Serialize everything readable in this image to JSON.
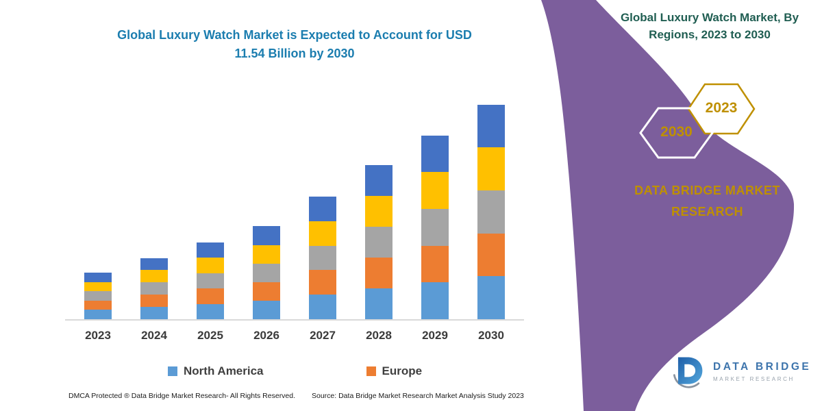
{
  "title_color": "#1B7DAF",
  "chart_data": {
    "type": "bar",
    "stacked": true,
    "title": "Global Luxury Watch Market is Expected to Account for USD 11.54 Billion by 2030",
    "title_line1": "Global Luxury Watch Market is Expected to Account for USD",
    "title_line2": "11.54 Billion by 2030",
    "categories": [
      "2023",
      "2024",
      "2025",
      "2026",
      "2027",
      "2028",
      "2029",
      "2030"
    ],
    "series": [
      {
        "name": "North America",
        "color": "#5B9BD5",
        "values": [
          0.5,
          0.66,
          0.83,
          1.0,
          1.32,
          1.66,
          1.98,
          2.31
        ]
      },
      {
        "name": "Europe",
        "color": "#ED7D31",
        "values": [
          0.5,
          0.66,
          0.83,
          1.0,
          1.32,
          1.66,
          1.98,
          2.31
        ]
      },
      {
        "name": "(unlabeled gray segment)",
        "color": "#A5A5A5",
        "values": [
          0.5,
          0.66,
          0.83,
          1.0,
          1.32,
          1.66,
          1.98,
          2.31
        ]
      },
      {
        "name": "(unlabeled yellow segment)",
        "color": "#FFC000",
        "values": [
          0.5,
          0.66,
          0.83,
          1.0,
          1.32,
          1.66,
          1.98,
          2.31
        ]
      },
      {
        "name": "(unlabeled blue segment)",
        "color": "#4472C4",
        "values": [
          0.5,
          0.66,
          0.83,
          1.0,
          1.32,
          1.66,
          1.98,
          2.31
        ]
      }
    ],
    "totals_estimated_usd_billion": [
      2.5,
      3.3,
      4.15,
      5.0,
      6.6,
      8.3,
      9.9,
      11.54
    ],
    "xlabel": "",
    "ylabel": "",
    "ylim": [
      0,
      11.8
    ],
    "grid": false,
    "legend_position": "bottom"
  },
  "legend": [
    {
      "label": "North America",
      "color": "#5B9BD5"
    },
    {
      "label": "Europe",
      "color": "#ED7D31"
    }
  ],
  "right_panel": {
    "background_color": "#7C5E9C",
    "heading_line1": "Global Luxury Watch Market, By",
    "heading_line2": "Regions, 2023 to 2030",
    "heading_color": "#205E52",
    "hexagons": [
      {
        "label": "2030"
      },
      {
        "label": "2023"
      }
    ],
    "brand": "DATA BRIDGE MARKET RESEARCH",
    "brand_color": "#BF9000"
  },
  "logo": {
    "name": "DATA BRIDGE",
    "tagline": "MARKET RESEARCH"
  },
  "footer": {
    "dmca": "DMCA Protected ® Data Bridge Market Research- All Rights Reserved.",
    "source": "Source: Data Bridge Market Research  Market Analysis Study 2023"
  }
}
